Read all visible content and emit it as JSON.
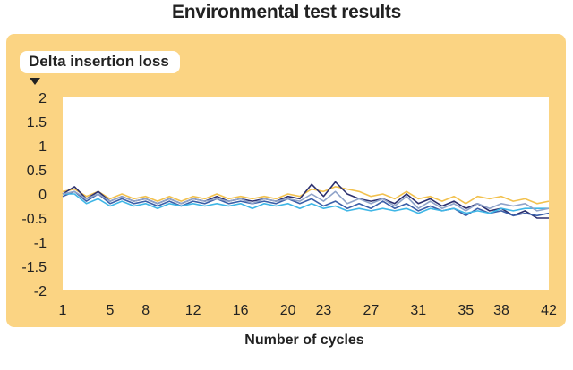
{
  "chart_data": {
    "type": "line",
    "title": "Environmental test results",
    "ylabel": "Delta insertion loss",
    "xlabel": "Number of cycles",
    "ylim": [
      -2,
      2
    ],
    "xlim": [
      1,
      42
    ],
    "yticks": [
      2,
      1.5,
      1,
      0.5,
      0,
      -0.5,
      -1,
      -1.5,
      -2
    ],
    "xticks": [
      1,
      5,
      8,
      12,
      16,
      20,
      23,
      27,
      31,
      35,
      38,
      42
    ],
    "grid": false,
    "legend": "none",
    "series": [
      {
        "color": "#f2c14e",
        "values": [
          0.05,
          0.1,
          -0.05,
          0.05,
          -0.1,
          0.0,
          -0.1,
          -0.05,
          -0.15,
          -0.05,
          -0.15,
          -0.05,
          -0.1,
          0.0,
          -0.1,
          -0.05,
          -0.1,
          -0.05,
          -0.1,
          0.0,
          -0.05,
          0.1,
          0.05,
          0.15,
          0.1,
          0.05,
          -0.05,
          0.0,
          -0.1,
          0.05,
          -0.1,
          -0.05,
          -0.15,
          -0.05,
          -0.2,
          -0.05,
          -0.1,
          -0.05,
          -0.15,
          -0.1,
          -0.2,
          -0.15
        ]
      },
      {
        "color": "#2b2f6e",
        "values": [
          0.0,
          0.15,
          -0.1,
          0.05,
          -0.15,
          -0.05,
          -0.15,
          -0.1,
          -0.2,
          -0.1,
          -0.2,
          -0.1,
          -0.15,
          -0.05,
          -0.15,
          -0.1,
          -0.15,
          -0.1,
          -0.15,
          -0.05,
          -0.1,
          0.2,
          -0.05,
          0.25,
          0.0,
          -0.1,
          -0.15,
          -0.1,
          -0.2,
          0.0,
          -0.2,
          -0.1,
          -0.25,
          -0.15,
          -0.3,
          -0.2,
          -0.35,
          -0.3,
          -0.45,
          -0.35,
          -0.5,
          -0.5
        ]
      },
      {
        "color": "#3b5fa8",
        "values": [
          -0.05,
          0.05,
          -0.15,
          0.0,
          -0.2,
          -0.1,
          -0.2,
          -0.15,
          -0.25,
          -0.15,
          -0.25,
          -0.15,
          -0.2,
          -0.1,
          -0.2,
          -0.15,
          -0.2,
          -0.15,
          -0.2,
          -0.1,
          -0.2,
          -0.1,
          -0.25,
          -0.15,
          -0.3,
          -0.2,
          -0.3,
          -0.15,
          -0.3,
          -0.2,
          -0.35,
          -0.25,
          -0.35,
          -0.3,
          -0.45,
          -0.3,
          -0.4,
          -0.35,
          -0.45,
          -0.4,
          -0.45,
          -0.4
        ]
      },
      {
        "color": "#3fb6e6",
        "values": [
          0.0,
          0.0,
          -0.2,
          -0.1,
          -0.25,
          -0.15,
          -0.25,
          -0.2,
          -0.3,
          -0.2,
          -0.25,
          -0.2,
          -0.25,
          -0.2,
          -0.25,
          -0.2,
          -0.3,
          -0.2,
          -0.25,
          -0.2,
          -0.3,
          -0.2,
          -0.3,
          -0.25,
          -0.35,
          -0.3,
          -0.35,
          -0.3,
          -0.35,
          -0.3,
          -0.4,
          -0.3,
          -0.35,
          -0.3,
          -0.4,
          -0.35,
          -0.4,
          -0.3,
          -0.35,
          -0.3,
          -0.3,
          -0.3
        ]
      },
      {
        "color": "#8fa3c9",
        "values": [
          0.0,
          0.05,
          -0.1,
          0.0,
          -0.15,
          -0.05,
          -0.15,
          -0.1,
          -0.2,
          -0.1,
          -0.2,
          -0.1,
          -0.15,
          -0.1,
          -0.15,
          -0.1,
          -0.2,
          -0.1,
          -0.15,
          -0.1,
          -0.15,
          0.0,
          -0.15,
          0.05,
          -0.2,
          -0.1,
          -0.2,
          -0.1,
          -0.25,
          -0.05,
          -0.3,
          -0.15,
          -0.3,
          -0.2,
          -0.35,
          -0.2,
          -0.3,
          -0.2,
          -0.25,
          -0.2,
          -0.35,
          -0.3
        ]
      }
    ]
  }
}
